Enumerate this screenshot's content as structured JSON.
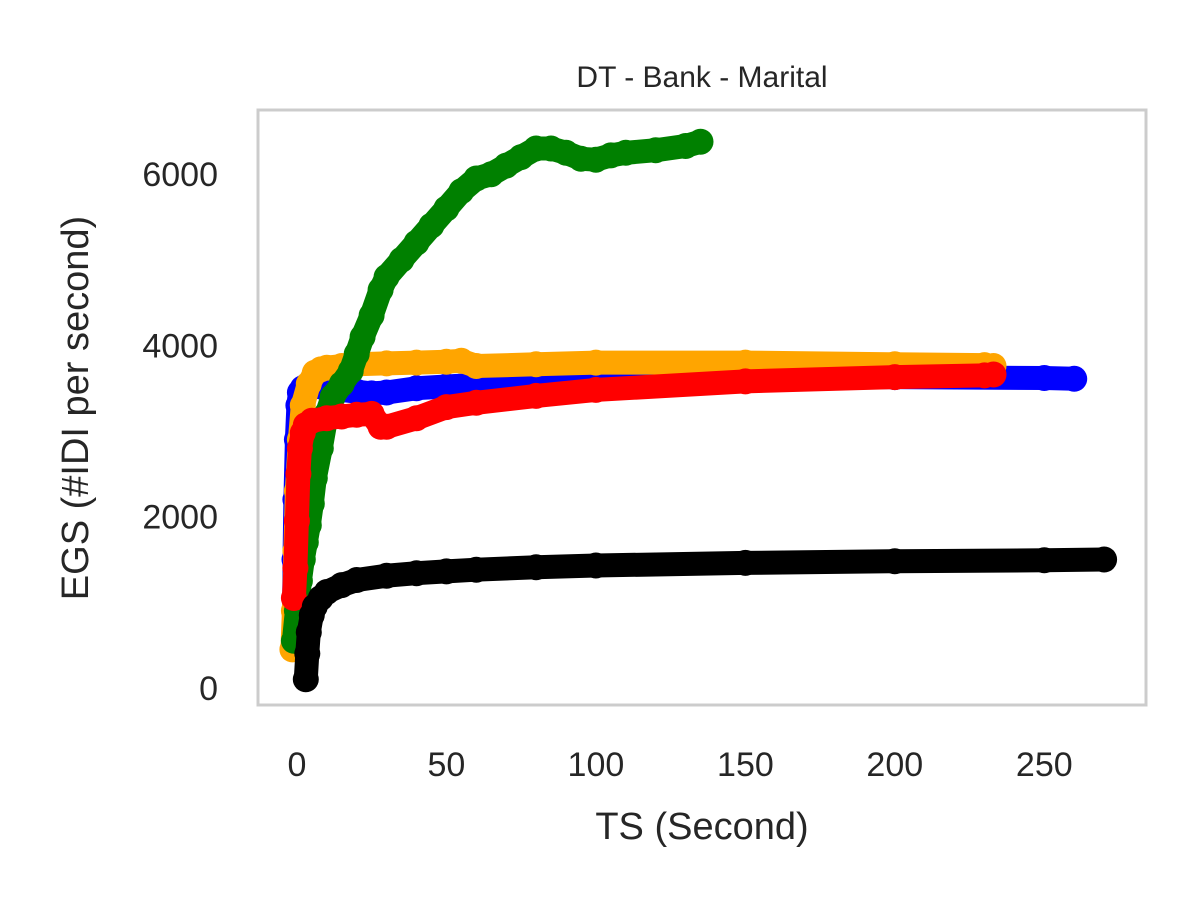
{
  "chart_data": {
    "type": "line",
    "title": "DT - Bank - Marital",
    "xlabel": "TS (Second)",
    "ylabel": "EGS (#IDI  per second)",
    "xlim": [
      -13,
      284
    ],
    "ylim": [
      -200,
      6750
    ],
    "xticks": [
      0,
      50,
      100,
      150,
      200,
      250
    ],
    "yticks": [
      0,
      2000,
      4000,
      6000
    ],
    "grid": false,
    "series": [
      {
        "color": "#0000ff",
        "x": [
          -1,
          -0.8,
          -0.5,
          0,
          0.5,
          1,
          2,
          3,
          5,
          8,
          10,
          15,
          20,
          25,
          30,
          40,
          50,
          60,
          80,
          100,
          150,
          200,
          250,
          260
        ],
        "y": [
          500,
          1500,
          2200,
          2900,
          3300,
          3450,
          3500,
          3520,
          3530,
          3520,
          3510,
          3480,
          3460,
          3440,
          3450,
          3500,
          3520,
          3540,
          3560,
          3580,
          3610,
          3630,
          3620,
          3610
        ]
      },
      {
        "color": "#ffa500",
        "x": [
          -1.5,
          -1,
          -0.5,
          0,
          1,
          2,
          4,
          6,
          8,
          10,
          15,
          20,
          30,
          40,
          50,
          55,
          60,
          80,
          100,
          150,
          200,
          230,
          233
        ],
        "y": [
          450,
          900,
          1600,
          2300,
          2900,
          3300,
          3550,
          3680,
          3720,
          3740,
          3760,
          3780,
          3790,
          3800,
          3810,
          3820,
          3760,
          3780,
          3800,
          3800,
          3780,
          3770,
          3760
        ]
      },
      {
        "color": "#008000",
        "x": [
          -1,
          0,
          1,
          2,
          3,
          4,
          5,
          6,
          8,
          10,
          12,
          15,
          18,
          20,
          22,
          25,
          28,
          30,
          35,
          40,
          45,
          50,
          55,
          60,
          65,
          70,
          75,
          80,
          85,
          90,
          95,
          100,
          105,
          110,
          120,
          130,
          135
        ],
        "y": [
          550,
          900,
          1250,
          1500,
          1700,
          1900,
          2150,
          2450,
          2800,
          3200,
          3400,
          3550,
          3700,
          3900,
          4100,
          4350,
          4650,
          4800,
          5000,
          5200,
          5400,
          5600,
          5800,
          5950,
          6000,
          6100,
          6200,
          6300,
          6300,
          6250,
          6180,
          6170,
          6220,
          6250,
          6280,
          6330,
          6380
        ]
      },
      {
        "color": "#ff0000",
        "x": [
          -1,
          -0.5,
          0,
          0.5,
          1,
          2,
          3,
          5,
          10,
          15,
          20,
          25,
          28,
          30,
          40,
          50,
          60,
          80,
          100,
          150,
          200,
          230,
          233
        ],
        "y": [
          1050,
          1400,
          1950,
          2500,
          2800,
          2980,
          3070,
          3120,
          3150,
          3170,
          3190,
          3200,
          3050,
          3050,
          3150,
          3280,
          3330,
          3410,
          3480,
          3580,
          3630,
          3650,
          3660
        ]
      },
      {
        "color": "#000000",
        "x": [
          3,
          3.5,
          4,
          5,
          6,
          8,
          10,
          15,
          20,
          30,
          40,
          50,
          60,
          80,
          100,
          150,
          200,
          250,
          270
        ],
        "y": [
          100,
          400,
          650,
          850,
          950,
          1050,
          1120,
          1200,
          1260,
          1310,
          1340,
          1360,
          1380,
          1410,
          1430,
          1460,
          1480,
          1490,
          1500
        ]
      }
    ]
  }
}
